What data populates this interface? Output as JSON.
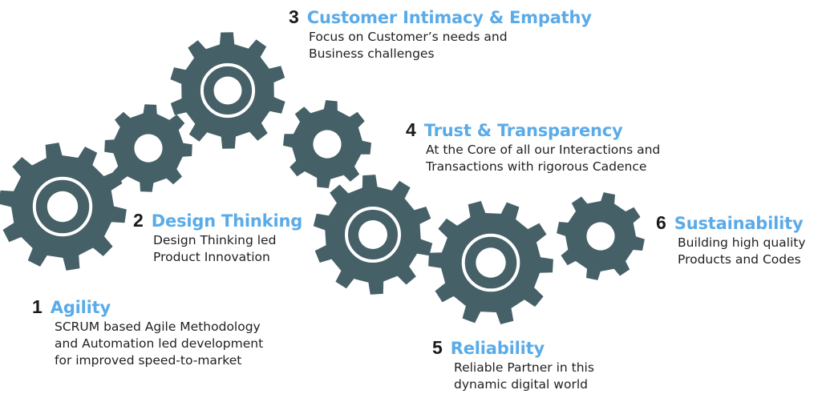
{
  "colors": {
    "gear": "#466067",
    "ring": "#ffffff",
    "title": "#5aabe8",
    "number": "#1a1a1a",
    "text": "#1f1f1f"
  },
  "gear_icon": "gear-icon",
  "items": [
    {
      "number": "1",
      "title": "Agility",
      "lines": [
        "SCRUM based Agile Methodology",
        "and Automation led development",
        "for improved speed-to-market"
      ]
    },
    {
      "number": "2",
      "title": "Design Thinking",
      "lines": [
        "Design Thinking led",
        "Product Innovation"
      ]
    },
    {
      "number": "3",
      "title": "Customer Intimacy & Empathy",
      "lines": [
        "Focus on Customer’s needs and",
        "Business challenges"
      ]
    },
    {
      "number": "4",
      "title": "Trust & Transparency",
      "lines": [
        "At the Core of all our Interactions and",
        "Transactions with rigorous Cadence"
      ]
    },
    {
      "number": "5",
      "title": "Reliability",
      "lines": [
        "Reliable Partner in this",
        "dynamic digital world"
      ]
    },
    {
      "number": "6",
      "title": "Sustainability",
      "lines": [
        "Building high quality",
        "Products and Codes"
      ]
    }
  ]
}
